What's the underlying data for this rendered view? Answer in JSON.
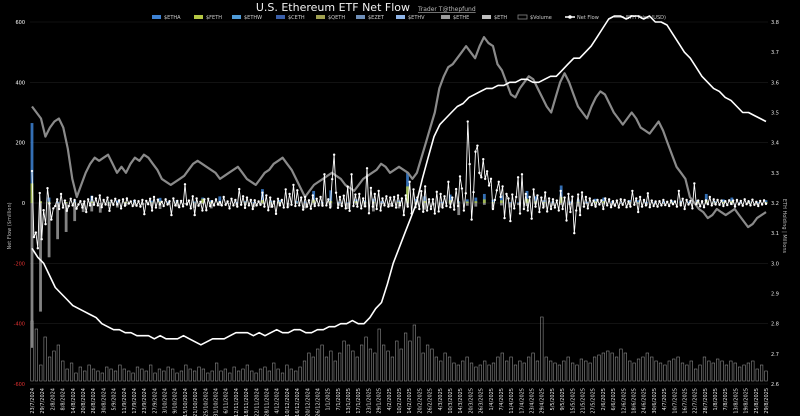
{
  "title": "U.S. Ethereum ETF Net Flow",
  "credit": "Trader T@thepfund",
  "colors": {
    "background": "#000000",
    "grid": "#1e1e1e",
    "zero_line": "#2c2c2c",
    "net_flow": "#ffffff",
    "eth_price": "#8a8a8a",
    "eth_holding": "#ffffff",
    "volume": "#8c8c8c",
    "left_tick_pos": "#ffffff",
    "left_tick_neg": "#e03030"
  },
  "legend": [
    {
      "label": "$ETHA",
      "color": "#3d82d4",
      "kind": "bar"
    },
    {
      "label": "$FETH",
      "color": "#b5c744",
      "kind": "bar"
    },
    {
      "label": "$ETHW",
      "color": "#4f9bd8",
      "kind": "bar"
    },
    {
      "label": "$CETH",
      "color": "#3a5faa",
      "kind": "bar"
    },
    {
      "label": "$QETH",
      "color": "#a0a050",
      "kind": "bar"
    },
    {
      "label": "$EZET",
      "color": "#6f8fb8",
      "kind": "bar"
    },
    {
      "label": "$ETHV",
      "color": "#8fb5e8",
      "kind": "bar"
    },
    {
      "label": "$ETHE",
      "color": "#9a9a9a",
      "kind": "bar"
    },
    {
      "label": "$ETH",
      "color": "#bfbfbf",
      "kind": "bar"
    },
    {
      "label": "$Volume",
      "color": "#888888",
      "kind": "outline"
    },
    {
      "label": "Net Flow",
      "color": "#ffffff",
      "kind": "line-dot"
    },
    {
      "label": "ETH Price (USD)",
      "color": "#8a8a8a",
      "kind": "line"
    }
  ],
  "chart_data": {
    "type": "bar",
    "title": "U.S. Ethereum ETF Net Flow",
    "ylabel": "Net Flow ($million)",
    "y2label": "ETH Holding | Millions",
    "ylim": [
      -600,
      600
    ],
    "y2lim": [
      2.6,
      3.8
    ],
    "yticks": [
      "600",
      "400",
      "200",
      "0",
      "-200",
      "-400",
      "-600"
    ],
    "y2ticks": [
      "3.8",
      "3.7",
      "3.6",
      "3.5",
      "3.4",
      "3.3",
      "3.2",
      "3.1",
      "3.0",
      "2.9",
      "2.8",
      "2.7",
      "2.6"
    ],
    "xticks": [
      "23/7/2024",
      "29/7/2024",
      "2/8/2024",
      "8/8/2024",
      "14/8/2024",
      "20/8/2024",
      "26/8/2024",
      "30/8/2024",
      "5/9/2024",
      "11/9/2024",
      "17/9/2024",
      "23/9/2024",
      "27/9/2024",
      "3/10/2024",
      "9/10/2024",
      "15/10/2024",
      "21/10/2024",
      "25/10/2024",
      "31/10/2024",
      "6/11/2024",
      "12/11/2024",
      "18/11/2024",
      "22/11/2024",
      "28/11/2024",
      "4/12/2024",
      "10/12/2024",
      "16/12/2024",
      "20/12/2024",
      "26/12/2024",
      "1/1/2025",
      "7/1/2025",
      "13/1/2025",
      "17/1/2025",
      "23/1/2025",
      "29/1/2025",
      "4/2/2025",
      "10/2/2025",
      "14/2/2025",
      "20/2/2025",
      "26/2/2025",
      "4/3/2025",
      "10/3/2025",
      "14/3/2025",
      "20/3/2025",
      "26/3/2025",
      "1/4/2025",
      "7/4/2025",
      "11/4/2025",
      "17/4/2025",
      "23/4/2025",
      "29/4/2025",
      "5/5/2025",
      "9/5/2025",
      "15/5/2025",
      "21/5/2025",
      "27/5/2025",
      "2/6/2025",
      "6/6/2025",
      "12/6/2025",
      "18/6/2025",
      "24/6/2025",
      "30/6/2025",
      "4/7/2025",
      "10/7/2025",
      "16/7/2025",
      "22/7/2025",
      "28/7/2025",
      "1/8/2025",
      "7/8/2025",
      "13/8/2025",
      "19/8/2025",
      "25/8/2025",
      "29/8/2025"
    ],
    "series": [
      {
        "name": "Net Flow",
        "axis": "left",
        "values": [
          106,
          -113,
          -98,
          -150,
          33,
          -120,
          -24,
          -70,
          49,
          -2,
          -55,
          -18,
          -10,
          12,
          -20,
          30,
          -15,
          8,
          -26,
          -10,
          14,
          -8,
          10,
          -19,
          -5,
          6,
          -15,
          5,
          -30,
          12,
          -8,
          20,
          -6,
          15,
          -8,
          25,
          -14,
          10,
          -5,
          18,
          -26,
          8,
          -6,
          14,
          -5,
          9,
          -18,
          12,
          -9,
          15,
          -2,
          5,
          -10,
          8,
          -9,
          6,
          -12,
          10,
          -37,
          7,
          -4,
          14,
          -25,
          20,
          -15,
          11,
          -5,
          4,
          -10,
          12,
          -5,
          6,
          -40,
          15,
          -8,
          7,
          -14,
          7,
          -11,
          62,
          -5,
          8,
          -18,
          22,
          -40,
          15,
          -9,
          4,
          -25,
          12,
          -24,
          14,
          -10,
          6,
          -8,
          12,
          -5,
          3,
          -8,
          20,
          -6,
          5,
          -18,
          14,
          -8,
          10,
          -12,
          46,
          -6,
          22,
          -16,
          18,
          -8,
          10,
          -20,
          9,
          -8,
          5,
          -6,
          34,
          -12,
          25,
          -24,
          18,
          -12,
          5,
          -36,
          14,
          -8,
          10,
          -15,
          45,
          -14,
          30,
          -6,
          60,
          -10,
          42,
          -8,
          18,
          -22,
          20,
          -12,
          9,
          -19,
          25,
          -10,
          14,
          -8,
          20,
          -9,
          95,
          -8,
          12,
          -15,
          79,
          160,
          34,
          -16,
          20,
          -10,
          24,
          -18,
          54,
          -26,
          95,
          -10,
          28,
          -12,
          30,
          -18,
          15,
          -11,
          115,
          -34,
          50,
          -12,
          30,
          -20,
          40,
          -25,
          15,
          -8,
          22,
          -12,
          18,
          -9,
          20,
          -15,
          25,
          -8,
          15,
          -40,
          25,
          -12,
          70,
          -35,
          45,
          -14,
          18,
          -20,
          39,
          -29,
          55,
          -25,
          12,
          -20,
          12,
          -35,
          37,
          -28,
          30,
          -15,
          22,
          -10,
          70,
          -14,
          18,
          -22,
          46,
          -10,
          88,
          48,
          -25,
          32,
          270,
          129,
          -55,
          36,
          170,
          190,
          100,
          85,
          145,
          80,
          105,
          58,
          80,
          -20,
          10,
          42,
          70,
          20,
          55,
          -50,
          30,
          15,
          -60,
          28,
          -18,
          20,
          85,
          -35,
          95,
          -20,
          30,
          -25,
          20,
          -52,
          45,
          -12,
          25,
          -30,
          18,
          -15,
          35,
          -28,
          15,
          -20,
          12,
          -15,
          8,
          -25,
          40,
          -20,
          18,
          -58,
          30,
          -30,
          21,
          -100,
          -25,
          28,
          -40,
          35,
          -12,
          20,
          -18,
          15,
          -7,
          8,
          -12,
          10,
          -5,
          9,
          -20,
          15,
          -8,
          12,
          -14,
          6,
          -9,
          8,
          -15,
          12,
          -6,
          10,
          -14,
          5,
          -12,
          40,
          -6,
          15,
          -30,
          20,
          -12,
          10,
          -8,
          32,
          -14,
          8,
          -10,
          5,
          -12,
          6,
          -8,
          10,
          -7,
          4,
          -10,
          8,
          -4,
          5,
          -12,
          40,
          -8,
          14,
          -20,
          10,
          -5,
          7,
          -18,
          65,
          -4,
          8,
          -11,
          6,
          -14,
          9,
          -4,
          20,
          -8,
          12,
          -5,
          10,
          -6,
          8,
          -10,
          6,
          -7,
          9,
          -3,
          8,
          -12,
          10,
          -5,
          7,
          -9,
          12,
          -4,
          6,
          -8,
          11,
          -6,
          4,
          -10,
          7,
          -5,
          9,
          -3
        ]
      },
      {
        "name": "ETH Price (USD)",
        "axis": "right",
        "values": [
          3.52,
          3.5,
          3.48,
          3.42,
          3.45,
          3.47,
          3.48,
          3.45,
          3.38,
          3.28,
          3.22,
          3.26,
          3.3,
          3.33,
          3.35,
          3.34,
          3.35,
          3.36,
          3.33,
          3.3,
          3.32,
          3.3,
          3.33,
          3.35,
          3.34,
          3.36,
          3.35,
          3.33,
          3.31,
          3.28,
          3.27,
          3.26,
          3.27,
          3.28,
          3.29,
          3.31,
          3.33,
          3.34,
          3.33,
          3.32,
          3.31,
          3.3,
          3.28,
          3.29,
          3.3,
          3.31,
          3.32,
          3.3,
          3.28,
          3.27,
          3.26,
          3.28,
          3.3,
          3.31,
          3.33,
          3.34,
          3.35,
          3.33,
          3.31,
          3.28,
          3.25,
          3.22,
          3.24,
          3.26,
          3.27,
          3.28,
          3.29,
          3.3,
          3.29,
          3.28,
          3.26,
          3.25,
          3.24,
          3.26,
          3.28,
          3.29,
          3.3,
          3.31,
          3.33,
          3.32,
          3.3,
          3.31,
          3.32,
          3.31,
          3.3,
          3.28,
          3.3,
          3.35,
          3.4,
          3.45,
          3.5,
          3.58,
          3.62,
          3.65,
          3.66,
          3.68,
          3.7,
          3.72,
          3.7,
          3.68,
          3.72,
          3.75,
          3.73,
          3.72,
          3.66,
          3.64,
          3.6,
          3.56,
          3.55,
          3.58,
          3.6,
          3.62,
          3.61,
          3.58,
          3.55,
          3.52,
          3.5,
          3.55,
          3.6,
          3.63,
          3.6,
          3.56,
          3.52,
          3.5,
          3.48,
          3.52,
          3.55,
          3.57,
          3.56,
          3.53,
          3.5,
          3.48,
          3.46,
          3.48,
          3.5,
          3.48,
          3.45,
          3.44,
          3.43,
          3.45,
          3.47,
          3.44,
          3.4,
          3.36,
          3.32,
          3.3,
          3.28,
          3.22,
          3.2,
          3.18,
          3.17,
          3.15,
          3.16,
          3.18,
          3.17,
          3.16,
          3.17,
          3.18,
          3.16,
          3.14,
          3.12,
          3.13,
          3.15,
          3.16,
          3.17
        ]
      },
      {
        "name": "ETH Holding",
        "axis": "right",
        "values": [
          3.05,
          3.02,
          3.0,
          2.96,
          2.92,
          2.9,
          2.88,
          2.86,
          2.85,
          2.84,
          2.83,
          2.82,
          2.8,
          2.79,
          2.78,
          2.78,
          2.77,
          2.77,
          2.76,
          2.76,
          2.76,
          2.75,
          2.76,
          2.75,
          2.75,
          2.75,
          2.76,
          2.75,
          2.74,
          2.73,
          2.74,
          2.75,
          2.75,
          2.75,
          2.76,
          2.77,
          2.77,
          2.77,
          2.76,
          2.77,
          2.76,
          2.77,
          2.78,
          2.77,
          2.77,
          2.78,
          2.78,
          2.77,
          2.77,
          2.78,
          2.78,
          2.79,
          2.79,
          2.8,
          2.8,
          2.81,
          2.8,
          2.8,
          2.82,
          2.85,
          2.87,
          2.93,
          3.0,
          3.05,
          3.1,
          3.15,
          3.2,
          3.28,
          3.35,
          3.42,
          3.46,
          3.48,
          3.5,
          3.52,
          3.53,
          3.55,
          3.56,
          3.57,
          3.58,
          3.58,
          3.59,
          3.59,
          3.6,
          3.6,
          3.61,
          3.61,
          3.6,
          3.6,
          3.61,
          3.62,
          3.62,
          3.64,
          3.66,
          3.68,
          3.68,
          3.7,
          3.72,
          3.75,
          3.78,
          3.81,
          3.82,
          3.82,
          3.81,
          3.82,
          3.82,
          3.81,
          3.82,
          3.8,
          3.8,
          3.79,
          3.76,
          3.73,
          3.7,
          3.68,
          3.65,
          3.62,
          3.6,
          3.58,
          3.57,
          3.55,
          3.54,
          3.52,
          3.5,
          3.5,
          3.49,
          3.48,
          3.47
        ]
      },
      {
        "name": "$Volume",
        "axis": "bottom",
        "values": [
          30,
          26,
          8,
          22,
          12,
          15,
          18,
          10,
          6,
          9,
          4,
          7,
          5,
          8,
          6,
          5,
          4,
          7,
          6,
          5,
          8,
          6,
          5,
          4,
          7,
          6,
          5,
          8,
          4,
          6,
          5,
          7,
          6,
          4,
          5,
          8,
          6,
          5,
          7,
          6,
          4,
          5,
          9,
          5,
          6,
          4,
          7,
          5,
          6,
          8,
          5,
          4,
          6,
          7,
          5,
          9,
          6,
          4,
          8,
          6,
          5,
          7,
          10,
          14,
          12,
          16,
          18,
          12,
          15,
          10,
          14,
          20,
          18,
          15,
          12,
          18,
          22,
          16,
          14,
          26,
          18,
          15,
          12,
          20,
          16,
          24,
          20,
          28,
          22,
          14,
          18,
          16,
          12,
          10,
          14,
          12,
          9,
          8,
          10,
          12,
          9,
          7,
          8,
          10,
          8,
          9,
          12,
          14,
          10,
          12,
          8,
          10,
          9,
          12,
          14,
          10,
          32,
          12,
          10,
          9,
          8,
          10,
          12,
          9,
          8,
          11,
          10,
          9,
          12,
          13,
          14,
          15,
          14,
          12,
          16,
          14,
          10,
          9,
          11,
          12,
          14,
          12,
          10,
          9,
          8,
          10,
          11,
          12,
          9,
          8,
          10,
          6,
          8,
          12,
          10,
          9,
          11,
          10,
          8,
          10,
          9,
          7,
          8,
          9,
          10,
          6,
          8,
          5
        ]
      }
    ],
    "etf_breakdown": [
      {
        "ticker": "$ETHA",
        "values": [
          265,
          5,
          18,
          4,
          3,
          8,
          0,
          24,
          0,
          4,
          8,
          2,
          10,
          0,
          8,
          17,
          5,
          9,
          0,
          5,
          18,
          9,
          22,
          0,
          4,
          6,
          4,
          46,
          8,
          10,
          0,
          6,
          5,
          40,
          3,
          42,
          4,
          2,
          12,
          8,
          14,
          6,
          0,
          8,
          102,
          14,
          22,
          0,
          4,
          28,
          6,
          12,
          18,
          30,
          11,
          25,
          3,
          2,
          40,
          22,
          9,
          5,
          58,
          5,
          12,
          4,
          14,
          18,
          6,
          2,
          10,
          9,
          4,
          3,
          6,
          8,
          7,
          5,
          10,
          30,
          6,
          12,
          18,
          4,
          7,
          3,
          9
        ]
      },
      {
        "ticker": "$ETHE",
        "values": [
          -480,
          -360,
          -180,
          -120,
          -96,
          -60,
          -30,
          -28,
          -32,
          -10,
          -15,
          -9,
          -8,
          -7,
          -11,
          -20,
          -6,
          -12,
          -5,
          -16,
          -4,
          -18,
          -10,
          -3,
          -9,
          -7,
          -14,
          -4,
          -16,
          -5,
          -12,
          -3,
          -18,
          -6,
          -8,
          -13,
          -9,
          -20,
          -6,
          -14,
          -28,
          -4,
          -12,
          -18,
          -9,
          -6,
          -22,
          -8,
          -15,
          -5,
          -40,
          -9,
          -12,
          -6,
          -18,
          -8,
          -15,
          -7,
          -10,
          -5,
          -14,
          -9,
          -6,
          -7,
          -12,
          -4,
          -9,
          -5,
          -8,
          -3,
          -6,
          -4,
          -8,
          -5,
          -4,
          -3,
          -6,
          -4,
          -5,
          -4,
          -6,
          -5,
          -7,
          -4,
          -3,
          -6,
          -3
        ]
      },
      {
        "ticker": "$FETH",
        "values": [
          65,
          6,
          4,
          0,
          3,
          2,
          0,
          5,
          0,
          2,
          0,
          3,
          1,
          0,
          2,
          5,
          0,
          2,
          0,
          1,
          14,
          3,
          4,
          0,
          0,
          2,
          0,
          10,
          2,
          3,
          0,
          1,
          0,
          11,
          0,
          7,
          0,
          0,
          6,
          3,
          4,
          0,
          0,
          3,
          55,
          4,
          7,
          0,
          0,
          9,
          2,
          5,
          6,
          12,
          3,
          9,
          0,
          0,
          14,
          6,
          3,
          0,
          20,
          0,
          4,
          0,
          5,
          6,
          0,
          0,
          3,
          2,
          0,
          0,
          0,
          2,
          2,
          0,
          4,
          10,
          2,
          4,
          6,
          0,
          2,
          0,
          3
        ]
      }
    ]
  }
}
